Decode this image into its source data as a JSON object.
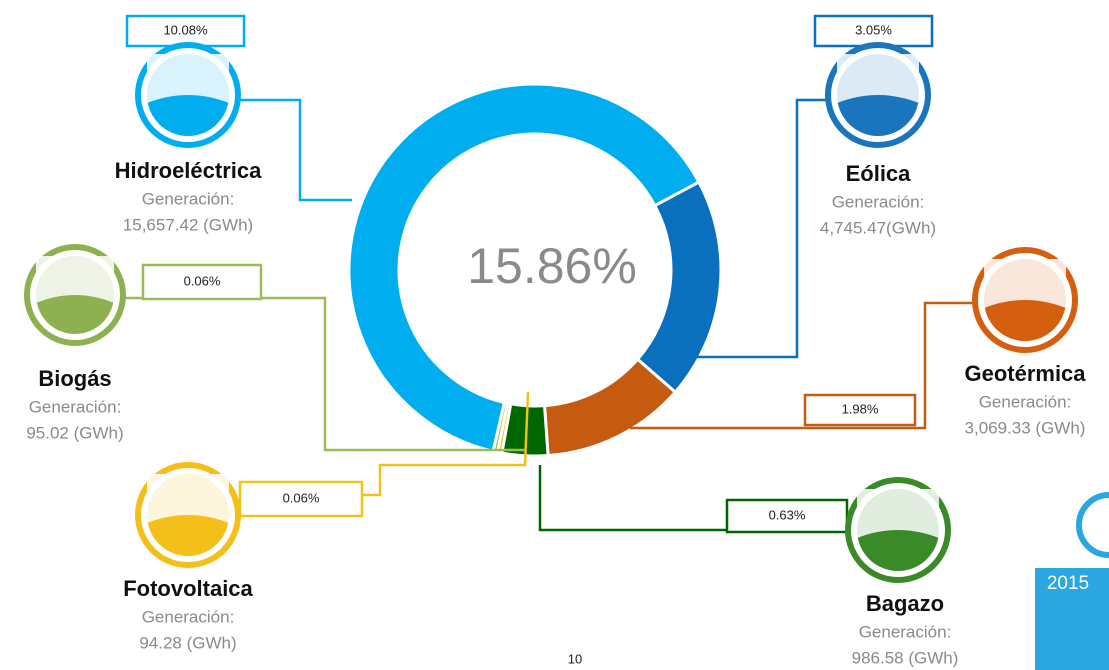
{
  "chart_data": {
    "type": "donut",
    "center_label": "15.86%",
    "categories": [
      "Hidroeléctrica",
      "Eólica",
      "Geotérmica",
      "Bagazo",
      "Fotovoltaica",
      "Biogás"
    ],
    "values": [
      10.08,
      3.05,
      1.98,
      0.63,
      0.06,
      0.06
    ],
    "value_labels": [
      "10.08%",
      "3.05%",
      "1.98%",
      "0.63%",
      "0.06%",
      "0.06%"
    ],
    "colors": [
      "#00aeef",
      "#0a6fbd",
      "#c55a11",
      "#006600",
      "#f2c21b",
      "#9bbb59"
    ],
    "generation_labels": [
      "Generación:",
      "Generación:",
      "Generación:",
      "Generación:",
      "Generación:",
      "Generación:"
    ],
    "generation_values": [
      "15,657.42 (GWh)",
      "4,745.47(GWh)",
      "3,069.33 (GWh)",
      "986.58 (GWh)",
      "94.28 (GWh)",
      "95.02 (GWh)"
    ]
  },
  "page_number": "10",
  "side_label": "2015"
}
